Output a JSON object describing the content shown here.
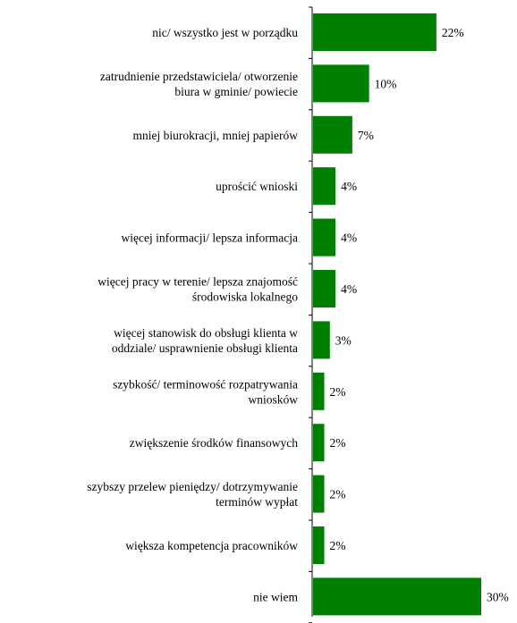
{
  "chart_data": {
    "type": "bar",
    "orientation": "horizontal",
    "categories": [
      [
        "nic/ wszystko jest w porządku"
      ],
      [
        "zatrudnienie przedstawiciela/ otworzenie",
        "biura w gminie/ powiecie"
      ],
      [
        "mniej biurokracji, mniej papierów"
      ],
      [
        "uprościć wnioski"
      ],
      [
        "więcej informacji/ lepsza informacja"
      ],
      [
        "więcej pracy w terenie/ lepsza znajomość",
        "środowiska lokalnego"
      ],
      [
        "więcej stanowisk do obsługi klienta w",
        "oddziale/ usprawnienie obsługi klienta"
      ],
      [
        "szybkość/ terminowość rozpatrywania",
        "wniosków"
      ],
      [
        "zwiększenie środków finansowych"
      ],
      [
        "szybszy przelew pieniędzy/ dotrzymywanie",
        "terminów wypłat"
      ],
      [
        "większa kompetencja pracowników"
      ],
      [
        "nie wiem"
      ]
    ],
    "values": [
      22,
      10,
      7,
      4,
      4,
      4,
      3,
      2,
      2,
      2,
      2,
      30
    ],
    "value_labels": [
      "22%",
      "10%",
      "7%",
      "4%",
      "4%",
      "4%",
      "3%",
      "2%",
      "2%",
      "2%",
      "2%",
      "30%"
    ],
    "bar_color": "#008000",
    "xlim": [
      0,
      30
    ],
    "grid": false,
    "legend": "none"
  }
}
